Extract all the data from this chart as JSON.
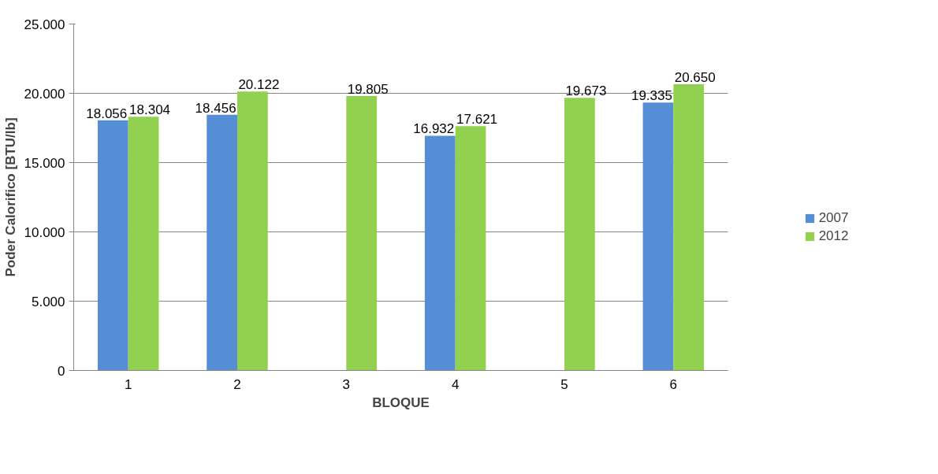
{
  "chart_data": {
    "type": "bar",
    "xlabel": "BLOQUE",
    "ylabel": "Poder Calorifico [BTU/lb]",
    "categories": [
      "1",
      "2",
      "3",
      "4",
      "5",
      "6"
    ],
    "series": [
      {
        "name": "2007",
        "color": "#558ed5",
        "values": [
          18056,
          18456,
          null,
          16932,
          null,
          19335
        ],
        "value_labels": [
          "18.056",
          "18.456",
          null,
          "16.932",
          null,
          "19.335"
        ]
      },
      {
        "name": "2012",
        "color": "#92d050",
        "values": [
          18304,
          20122,
          19805,
          17621,
          19673,
          20650
        ],
        "value_labels": [
          "18.304",
          "20.122",
          "19.805",
          "17.621",
          "19.673",
          "20.650"
        ]
      }
    ],
    "ylim": [
      0,
      25000
    ],
    "yticks": [
      {
        "value": 0,
        "label": "0"
      },
      {
        "value": 5000,
        "label": "5.000"
      },
      {
        "value": 10000,
        "label": "10.000"
      },
      {
        "value": 15000,
        "label": "15.000"
      },
      {
        "value": 20000,
        "label": "20.000"
      },
      {
        "value": 25000,
        "label": "25.000"
      }
    ],
    "grid": "y",
    "legend": "right"
  }
}
